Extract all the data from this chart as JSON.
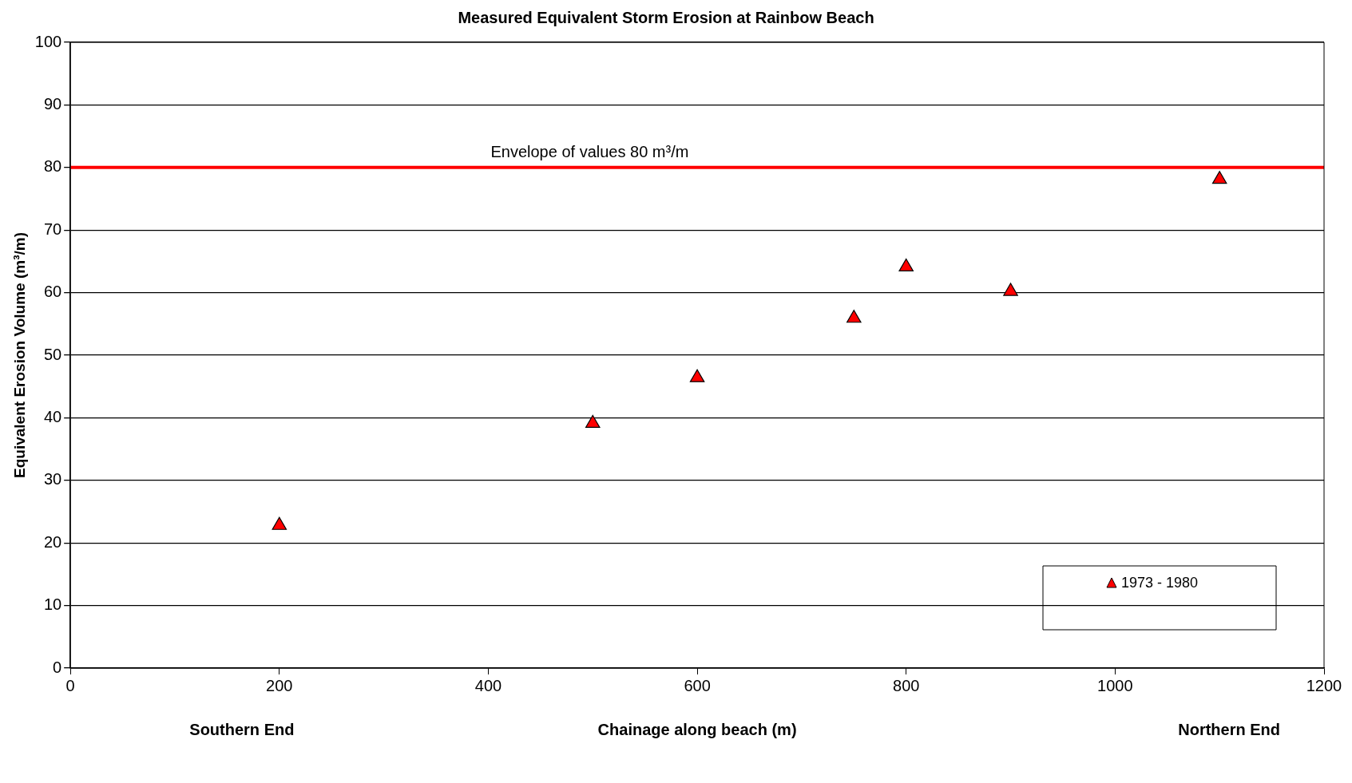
{
  "chart_data": {
    "type": "scatter",
    "title": "Measured Equivalent Storm Erosion at Rainbow Beach",
    "xlabel": "Chainage along beach (m)",
    "ylabel": "Equivalent Erosion Volume (m³/m)",
    "x": [
      200,
      500,
      600,
      750,
      800,
      900,
      1100
    ],
    "series": [
      {
        "name": "1973 - 1980",
        "color": "#ff0000",
        "values": [
          22.8,
          39.1,
          46.4,
          55.9,
          64.1,
          60.2,
          78.1
        ]
      }
    ],
    "xlim": [
      0,
      1200
    ],
    "xticks": [
      0,
      200,
      400,
      600,
      800,
      1000,
      1200
    ],
    "ylim": [
      0,
      100
    ],
    "yticks": [
      0,
      10,
      20,
      30,
      40,
      50,
      60,
      70,
      80,
      90,
      100
    ],
    "ref_lines": [
      {
        "axis": "y",
        "value": 80,
        "label": "Envelope of values 80 m³/m",
        "color": "#ff0000"
      }
    ],
    "annotations": [
      "Southern End",
      "Northern End"
    ],
    "grid": "y",
    "legend": "bottom right",
    "marker": "triangle"
  }
}
